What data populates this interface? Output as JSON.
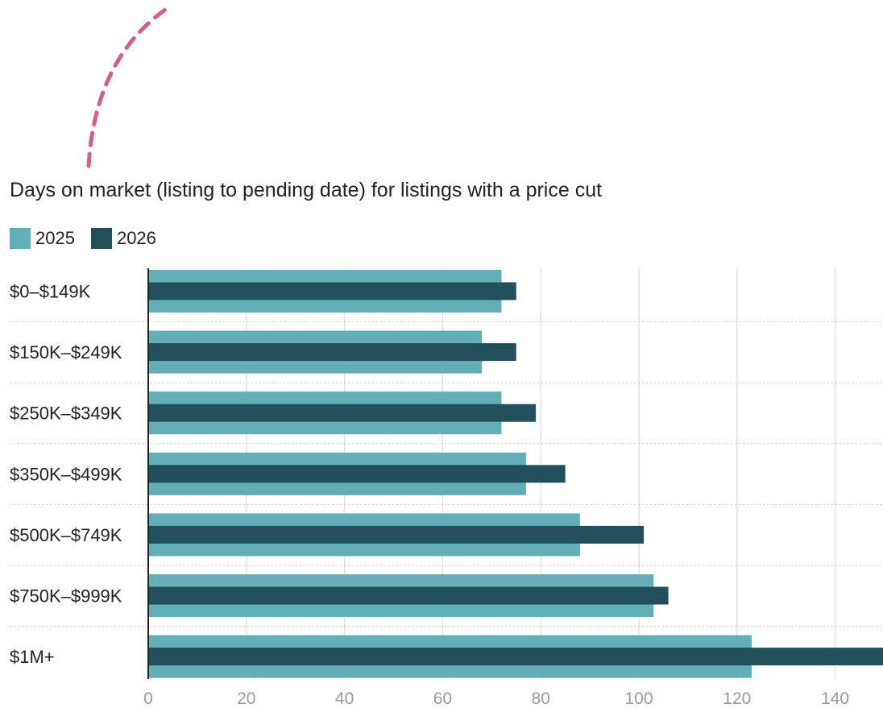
{
  "colors": {
    "series_2025": "#62afb8",
    "series_2026": "#214f5c",
    "decoration": "#d45f85",
    "grid": "#e2e2e2",
    "axis": "#222222",
    "tick_label": "#9a9a9a"
  },
  "chart_data": {
    "type": "bar",
    "orientation": "horizontal",
    "title": "Days on market (listing to pending date) for listings with a price cut",
    "xlabel": "",
    "ylabel": "",
    "categories": [
      "$0–$149K",
      "$150K–$249K",
      "$250K–$349K",
      "$350K–$499K",
      "$500K–$749K",
      "$750K–$999K",
      "$1M+"
    ],
    "series": [
      {
        "name": "2025",
        "values": [
          72,
          68,
          72,
          77,
          88,
          103,
          123
        ]
      },
      {
        "name": "2026",
        "values": [
          75,
          75,
          79,
          85,
          101,
          106,
          150
        ]
      }
    ],
    "xlim": [
      0,
      150
    ],
    "x_ticks": [
      0,
      20,
      40,
      60,
      80,
      100,
      120,
      140
    ],
    "grid": true,
    "legend": "top-left"
  }
}
